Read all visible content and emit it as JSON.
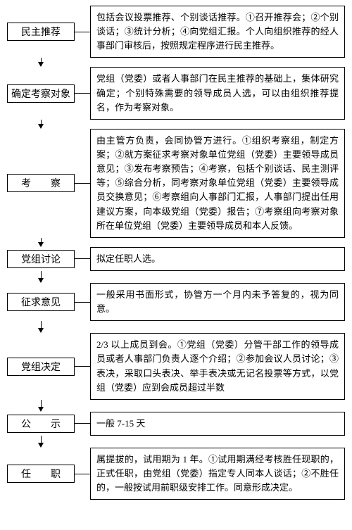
{
  "layout": {
    "leftColWidth": 96,
    "gapWidth": 22,
    "stepBoxWidth": 96,
    "fontFamily": "SimSun",
    "fontSizeStep": 14,
    "fontSizeDesc": 13,
    "borderColor": "#000000",
    "background": "#ffffff",
    "textColor": "#000000"
  },
  "steps": [
    {
      "label": "民主推荐",
      "desc": "包括会议投票推荐、个别谈话推荐。①召开推荐会；②个别谈话；③统计分析；④向党组汇报。个人向组织推荐的经人事部门审核后，按照规定程序进行民主推荐。",
      "gapAfter": 14
    },
    {
      "label": "确定考察对象",
      "desc": "党组（党委）或者人事部门在民主推荐的基础上，集体研究确定；个别特殊需要的领导成员人选，可以由组织推荐提名，作为考察对象。",
      "gapAfter": 14
    },
    {
      "label": "考　　察",
      "desc": "由主管方负责，会同协管方进行。①组织考察组，制定方案；②就方案征求考察对象单位党组（党委）主要领导成员意见；③发布考察预告；④考察，包括个别谈话、民主测评等；⑤综合分析，同考察对象单位党组（党委）主要领导成员交换意见；⑥考察组向人事部门汇报，人事部门提出任用建议方案，向本级党组（党委）报告；⑦考察组向考察对象所在单位党组（党委）主要领导成员和本人反馈。",
      "gapAfter": 14
    },
    {
      "label": "党组讨论",
      "desc": "拟定任职人选。",
      "gapAfter": 18
    },
    {
      "label": "征求意见",
      "desc": "一般采用书面形式，协管方一个月内未予答复的，视为同意。",
      "gapAfter": 18
    },
    {
      "label": "党组决定",
      "desc": "2/3 以上成员到会。①党组（党委）分管干部工作的领导成员或者人事部门负责人逐个介绍；②参加会议人员讨论；③表决，采取口头表决、举手表决或无记名投票等方式，以党组（党委）应到会成员超过半数",
      "gapAfter": 18
    },
    {
      "label": "公　　示",
      "desc": "一般 7-15 天",
      "gapAfter": 18
    },
    {
      "label": "任　　职",
      "desc": "属提拔的，试用期为 1 年。①试用期满经考核胜任现职的，正式任职，由党组（党委）指定专人同本人谈话；②不胜任的，一般按试用前职级安排工作。同意形成决定。",
      "gapAfter": 0
    }
  ]
}
